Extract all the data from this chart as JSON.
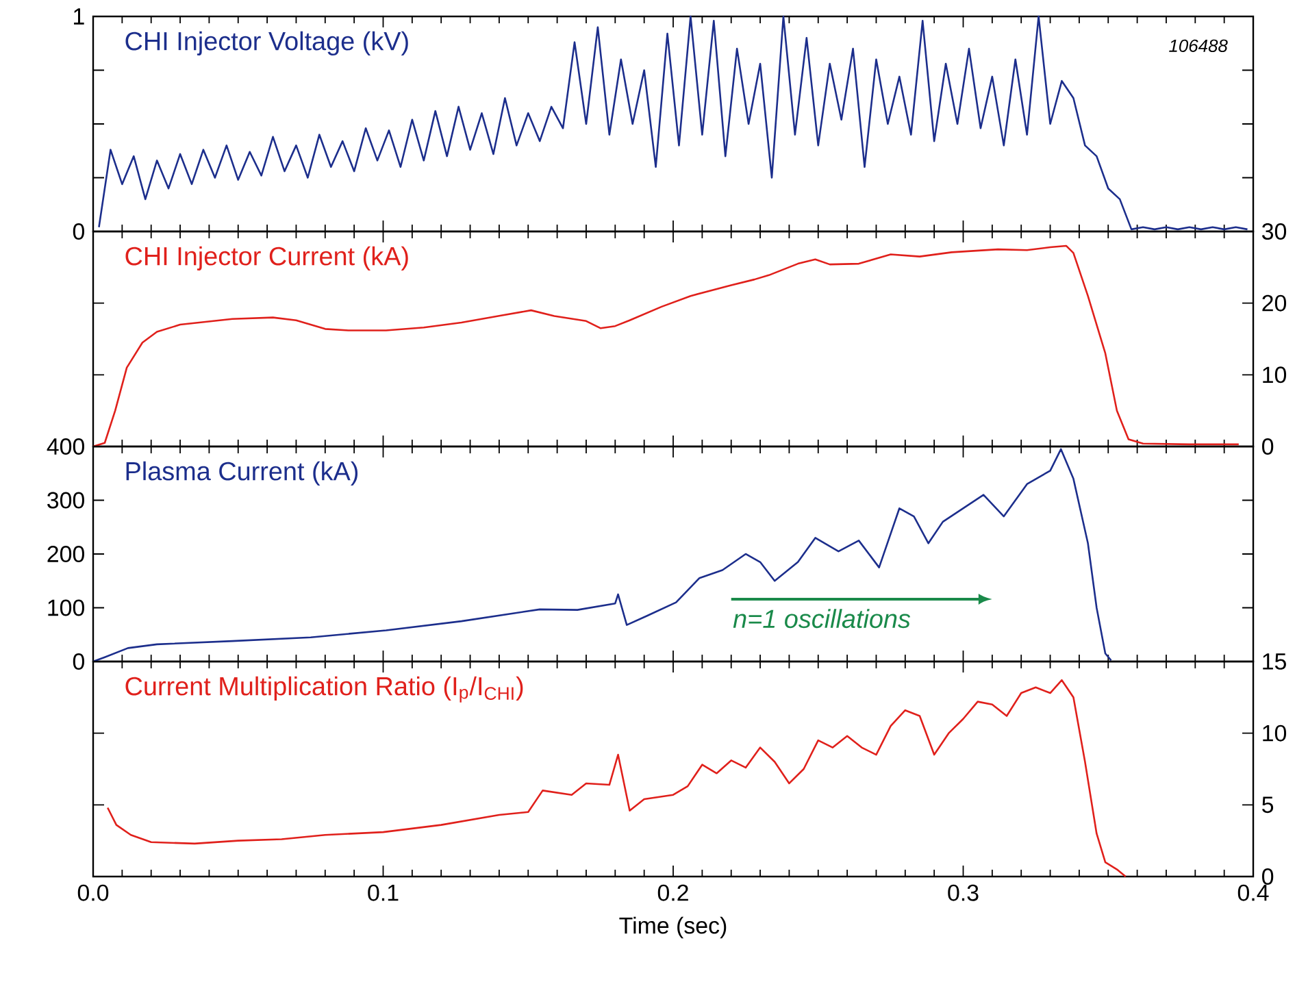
{
  "chart_data": [
    {
      "type": "line",
      "title": "CHI Injector Voltage (kV)",
      "annotations": [
        "106488"
      ],
      "tick_labels": "y",
      "xlim": [
        0,
        0.4
      ],
      "ylim": [
        0,
        1
      ],
      "xticks": [
        {
          "value": 0,
          "label": null
        },
        {
          "value": 0.1,
          "label": null
        },
        {
          "value": 0.2,
          "label": null
        },
        {
          "value": 0.3,
          "label": null
        },
        {
          "value": 0.4,
          "label": null
        }
      ],
      "yticks": [
        0,
        {
          "value": 0.25,
          "label": null
        },
        {
          "value": 0.5,
          "label": null
        },
        {
          "value": 0.75,
          "label": null
        },
        1
      ],
      "x": [
        0.002,
        0.006,
        0.01,
        0.014,
        0.018,
        0.022,
        0.026,
        0.03,
        0.034,
        0.038,
        0.042,
        0.046,
        0.05,
        0.054,
        0.058,
        0.062,
        0.066,
        0.07,
        0.074,
        0.078,
        0.082,
        0.086,
        0.09,
        0.094,
        0.098,
        0.102,
        0.106,
        0.11,
        0.114,
        0.118,
        0.122,
        0.126,
        0.13,
        0.134,
        0.138,
        0.142,
        0.146,
        0.15,
        0.154,
        0.158,
        0.162,
        0.166,
        0.17,
        0.174,
        0.178,
        0.182,
        0.186,
        0.19,
        0.194,
        0.198,
        0.202,
        0.206,
        0.21,
        0.214,
        0.218,
        0.222,
        0.226,
        0.23,
        0.234,
        0.238,
        0.242,
        0.246,
        0.25,
        0.254,
        0.258,
        0.262,
        0.266,
        0.27,
        0.274,
        0.278,
        0.282,
        0.286,
        0.29,
        0.294,
        0.298,
        0.302,
        0.306,
        0.31,
        0.314,
        0.318,
        0.322,
        0.326,
        0.33,
        0.334,
        0.338,
        0.342,
        0.346,
        0.35,
        0.354,
        0.358,
        0.362,
        0.366,
        0.37,
        0.374,
        0.378,
        0.382,
        0.386,
        0.39,
        0.394,
        0.398
      ],
      "series": [
        {
          "color": "#1c2e8c",
          "values": [
            0.02,
            0.38,
            0.22,
            0.35,
            0.15,
            0.33,
            0.2,
            0.36,
            0.22,
            0.38,
            0.25,
            0.4,
            0.24,
            0.37,
            0.26,
            0.44,
            0.28,
            0.4,
            0.25,
            0.45,
            0.3,
            0.42,
            0.28,
            0.48,
            0.33,
            0.47,
            0.3,
            0.52,
            0.33,
            0.56,
            0.35,
            0.58,
            0.38,
            0.55,
            0.36,
            0.62,
            0.4,
            0.55,
            0.42,
            0.58,
            0.48,
            0.88,
            0.5,
            0.95,
            0.45,
            0.8,
            0.5,
            0.75,
            0.3,
            0.92,
            0.4,
            1.0,
            0.45,
            0.98,
            0.35,
            0.85,
            0.5,
            0.78,
            0.25,
            1.0,
            0.45,
            0.9,
            0.4,
            0.78,
            0.52,
            0.85,
            0.3,
            0.8,
            0.5,
            0.72,
            0.45,
            0.98,
            0.42,
            0.78,
            0.5,
            0.85,
            0.48,
            0.72,
            0.4,
            0.8,
            0.45,
            1.0,
            0.5,
            0.7,
            0.62,
            0.4,
            0.35,
            0.2,
            0.15,
            0.01,
            0.02,
            0.01,
            0.02,
            0.01,
            0.02,
            0.01,
            0.02,
            0.01,
            0.02,
            0.01
          ]
        }
      ]
    },
    {
      "type": "line",
      "title": "CHI Injector Current (kA)",
      "tick_labels": "y",
      "xlim": [
        0,
        0.4
      ],
      "ylim": [
        0,
        30
      ],
      "xticks": [
        {
          "value": 0,
          "label": null
        },
        {
          "value": 0.1,
          "label": null
        },
        {
          "value": 0.2,
          "label": null
        },
        {
          "value": 0.3,
          "label": null
        },
        {
          "value": 0.4,
          "label": null
        }
      ],
      "yticks": [
        0,
        10,
        20,
        30
      ],
      "x": [
        0,
        0.004,
        0.0076,
        0.0116,
        0.017,
        0.022,
        0.03,
        0.048,
        0.062,
        0.07,
        0.08,
        0.088,
        0.101,
        0.114,
        0.127,
        0.141,
        0.151,
        0.159,
        0.17,
        0.175,
        0.18,
        0.185,
        0.196,
        0.206,
        0.22,
        0.228,
        0.233,
        0.243,
        0.249,
        0.254,
        0.264,
        0.275,
        0.285,
        0.296,
        0.312,
        0.322,
        0.33,
        0.3355,
        0.338,
        0.343,
        0.349,
        0.353,
        0.357,
        0.362,
        0.378,
        0.395
      ],
      "series": [
        {
          "color": "#e0201b",
          "values": [
            0,
            0.5,
            5,
            11,
            14.5,
            16,
            17,
            17.8,
            18,
            17.6,
            16.4,
            16.2,
            16.2,
            16.6,
            17.3,
            18.3,
            19,
            18.2,
            17.5,
            16.5,
            16.8,
            17.6,
            19.5,
            21,
            22.5,
            23.3,
            23.9,
            25.5,
            26.1,
            25.4,
            25.5,
            26.8,
            26.5,
            27.1,
            27.5,
            27.4,
            27.8,
            28,
            27,
            21,
            13,
            5,
            1,
            0.4,
            0.3,
            0.3
          ]
        }
      ]
    },
    {
      "type": "line",
      "title": "Plasma Current (kA)",
      "tick_labels": "y",
      "annotations": [
        "*n=1 oscillations*"
      ],
      "xlim": [
        0,
        0.4
      ],
      "ylim": [
        0,
        400
      ],
      "xticks": [
        {
          "value": 0,
          "label": null
        },
        {
          "value": 0.1,
          "label": null
        },
        {
          "value": 0.2,
          "label": null
        },
        {
          "value": 0.3,
          "label": null
        },
        {
          "value": 0.4,
          "label": null
        }
      ],
      "yticks": [
        0,
        100,
        200,
        300,
        400
      ],
      "x": [
        0,
        0.004,
        0.012,
        0.022,
        0.048,
        0.075,
        0.101,
        0.127,
        0.154,
        0.167,
        0.18,
        0.181,
        0.184,
        0.191,
        0.201,
        0.209,
        0.217,
        0.225,
        0.23,
        0.235,
        0.243,
        0.249,
        0.257,
        0.264,
        0.271,
        0.278,
        0.283,
        0.288,
        0.293,
        0.307,
        0.314,
        0.322,
        0.33,
        0.3337,
        0.338,
        0.343,
        0.346,
        0.349,
        0.351
      ],
      "series": [
        {
          "color": "#1c2e8c",
          "values": [
            0,
            8,
            25,
            32,
            38,
            45,
            58,
            75,
            97,
            96,
            108,
            125,
            68,
            85,
            110,
            155,
            170,
            200,
            185,
            150,
            185,
            230,
            205,
            225,
            175,
            285,
            270,
            220,
            260,
            310,
            270,
            330,
            355,
            395,
            340,
            220,
            100,
            15,
            2
          ]
        }
      ]
    },
    {
      "type": "line",
      "title": "Current Multiplication Ratio (I$_{p}$/I$_{CHI}$)",
      "xlabel": "Time (sec)",
      "xlim": [
        0,
        0.4
      ],
      "ylim": [
        0,
        15
      ],
      "xticks": [
        {
          "value": 0,
          "label": "0.0"
        },
        0.1,
        0.2,
        0.3,
        0.4
      ],
      "yticks": [
        0,
        5,
        10,
        15
      ],
      "x": [
        0.005,
        0.008,
        0.013,
        0.02,
        0.035,
        0.05,
        0.065,
        0.08,
        0.1,
        0.12,
        0.14,
        0.15,
        0.155,
        0.165,
        0.17,
        0.178,
        0.181,
        0.185,
        0.19,
        0.2,
        0.205,
        0.21,
        0.215,
        0.22,
        0.225,
        0.23,
        0.235,
        0.24,
        0.245,
        0.25,
        0.255,
        0.26,
        0.265,
        0.27,
        0.275,
        0.28,
        0.285,
        0.29,
        0.295,
        0.3,
        0.305,
        0.31,
        0.315,
        0.32,
        0.325,
        0.33,
        0.334,
        0.338,
        0.342,
        0.346,
        0.349,
        0.353,
        0.356
      ],
      "series": [
        {
          "color": "#e0201b",
          "values": [
            4.8,
            3.6,
            2.9,
            2.4,
            2.3,
            2.5,
            2.6,
            2.9,
            3.1,
            3.6,
            4.3,
            4.5,
            6.0,
            5.7,
            6.5,
            6.4,
            8.5,
            4.6,
            5.4,
            5.7,
            6.3,
            7.8,
            7.2,
            8.1,
            7.6,
            9.0,
            8.0,
            6.5,
            7.5,
            9.5,
            9.0,
            9.8,
            9.0,
            8.5,
            10.5,
            11.6,
            11.2,
            8.5,
            10.0,
            11.0,
            12.2,
            12.0,
            11.2,
            12.8,
            13.2,
            12.8,
            13.7,
            12.5,
            8.0,
            3.0,
            1.0,
            0.5,
            0.0
          ]
        }
      ]
    }
  ]
}
